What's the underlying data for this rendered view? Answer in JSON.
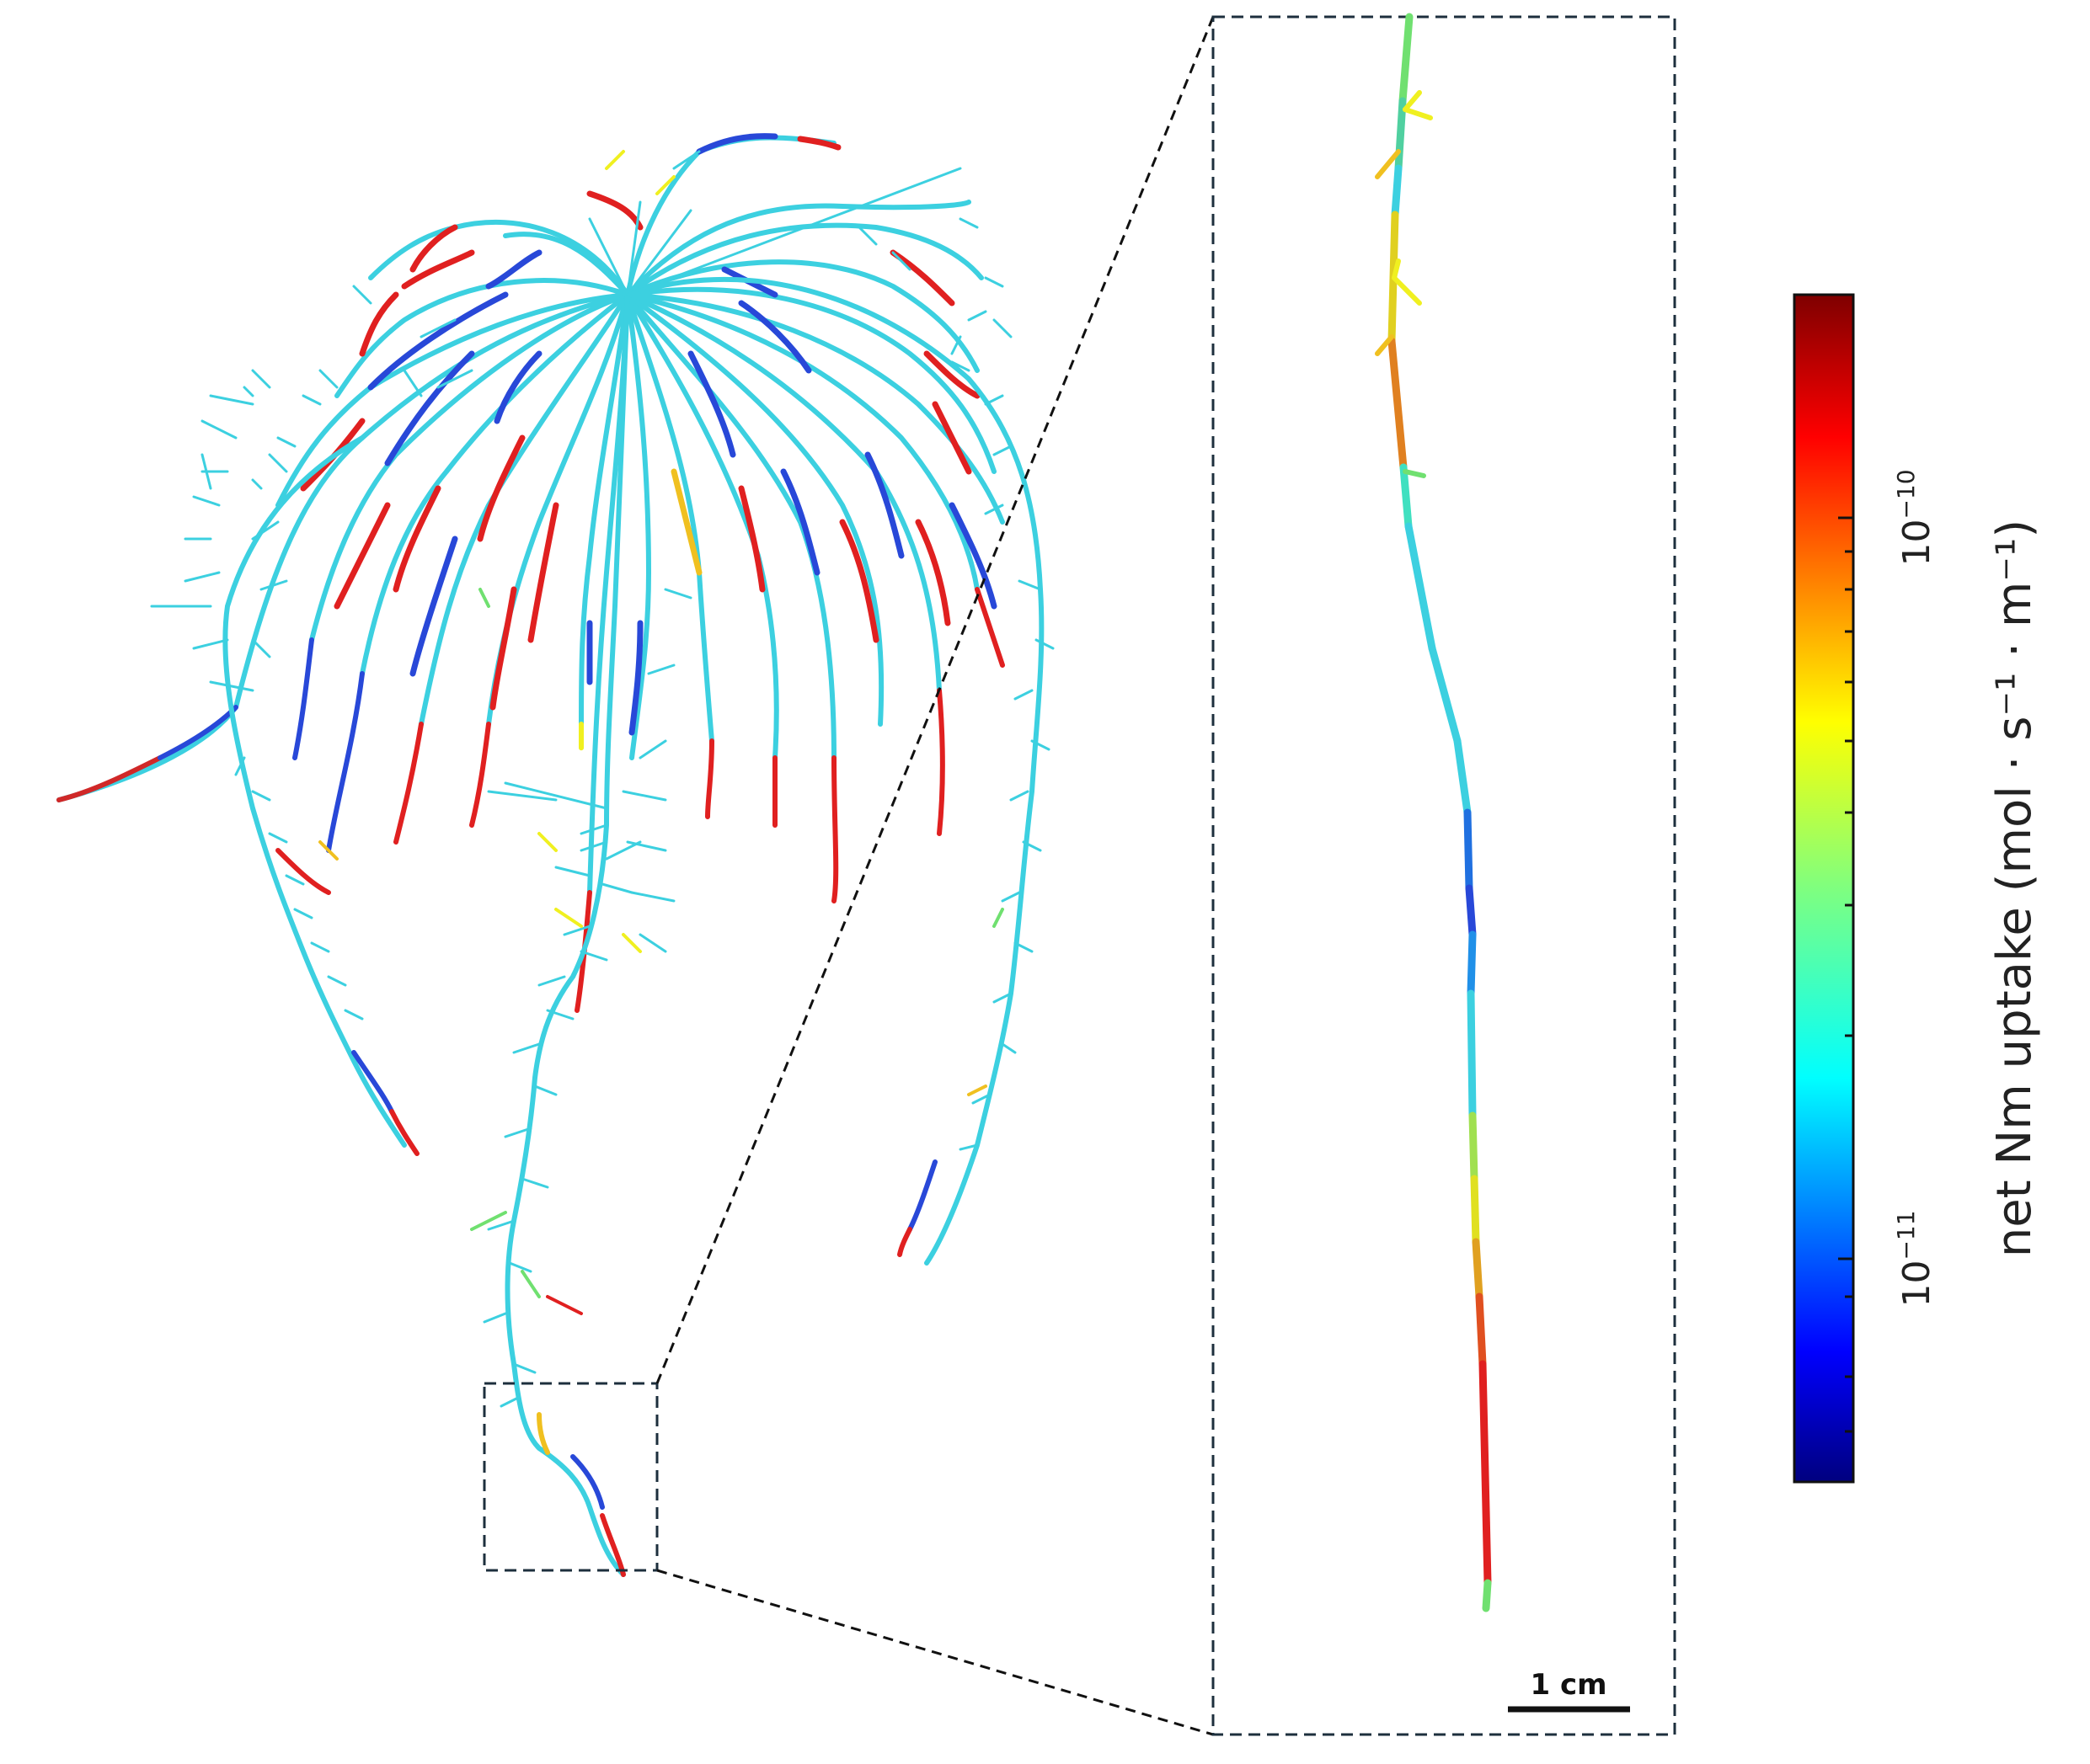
{
  "scale_bar": {
    "label": "1 cm"
  },
  "colorbar": {
    "label": "net Nm uptake (mol · s⁻¹ · m⁻¹)",
    "scale": "log",
    "colormap": "jet",
    "ticks": [
      {
        "base": "10",
        "exp": "−10",
        "value": 1e-10
      },
      {
        "base": "10",
        "exp": "−11",
        "value": 1e-11
      }
    ]
  },
  "colors": {
    "dark_blue": "#00008f",
    "blue": "#2848d8",
    "cyan": "#3cd0e0",
    "teal": "#40e0c0",
    "green": "#70e070",
    "yellow": "#f0f020",
    "orange": "#f08020",
    "red": "#e02020",
    "dark_red": "#800000",
    "frame": "#1d2f3d"
  }
}
